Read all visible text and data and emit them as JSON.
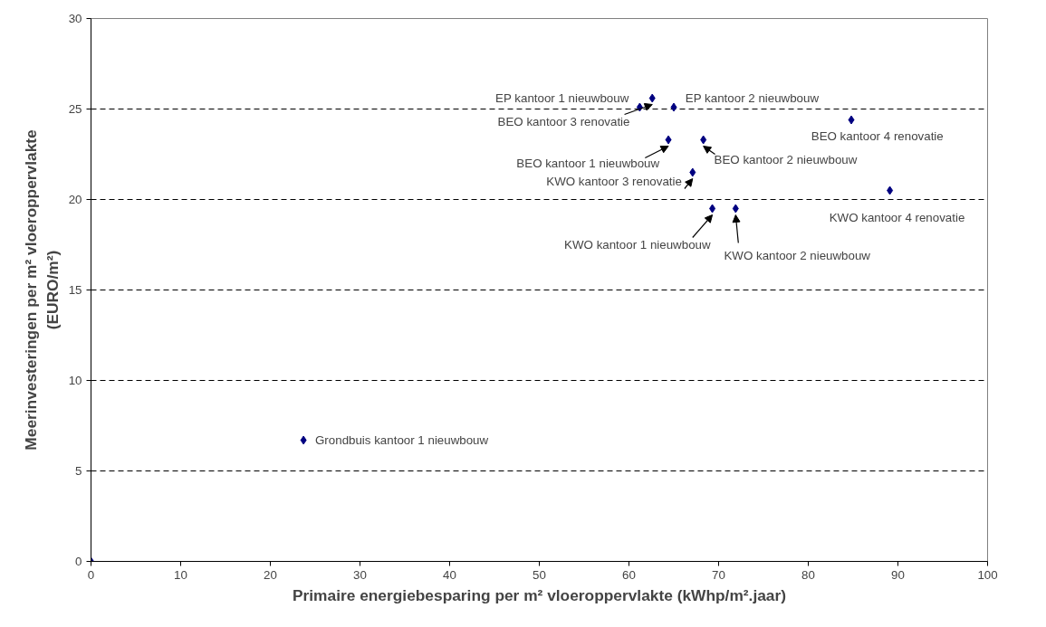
{
  "chart_data": {
    "type": "scatter",
    "xlabel": "Primaire energiebesparing per m² vloeroppervlakte (kWhp/m².jaar)",
    "ylabel": "Meerinvesteringen per m² vloeroppervlakte\n(EURO/m²)",
    "x": [
      0,
      23.7,
      61.2,
      62.6,
      65.0,
      64.4,
      68.3,
      67.1,
      69.3,
      71.9,
      84.8,
      89.1
    ],
    "series": [
      {
        "color": "#000080",
        "values": [
          0,
          6.7,
          25.1,
          25.6,
          25.1,
          23.3,
          23.3,
          21.5,
          19.5,
          19.5,
          24.4,
          20.5
        ]
      }
    ],
    "marker": "diamond",
    "grid": "y",
    "xlim": [
      0,
      100
    ],
    "xticks": [
      0,
      10,
      20,
      30,
      40,
      50,
      60,
      70,
      80,
      90,
      100
    ],
    "ylim": [
      0,
      30
    ],
    "yticks": [
      0,
      5,
      10,
      15,
      20,
      25,
      30
    ],
    "annotations": [
      {
        "text": "EP kantoor 1 nieuwbouw",
        "x": 61.2,
        "y": 25.1
      },
      {
        "text": "EP kantoor 2 nieuwbouw",
        "x": 65.0,
        "y": 25.1
      },
      {
        "text": "BEO kantoor 3 renovatie",
        "x": 62.6,
        "y": 25.6
      },
      {
        "text": "BEO kantoor 1 nieuwbouw",
        "x": 64.4,
        "y": 23.3
      },
      {
        "text": "BEO kantoor 2 nieuwbouw",
        "x": 68.3,
        "y": 23.3
      },
      {
        "text": "KWO kantoor 3 renovatie",
        "x": 67.1,
        "y": 21.5
      },
      {
        "text": "KWO kantoor 1 nieuwbouw",
        "x": 69.3,
        "y": 19.5
      },
      {
        "text": "KWO kantoor 2 nieuwbouw",
        "x": 71.9,
        "y": 19.5
      },
      {
        "text": "BEO kantoor 4 renovatie",
        "x": 84.8,
        "y": 24.4
      },
      {
        "text": "KWO kantoor 4 renovatie",
        "x": 89.1,
        "y": 20.5
      },
      {
        "text": "Grondbuis kantoor 1 nieuwbouw",
        "x": 23.7,
        "y": 6.7
      }
    ]
  }
}
